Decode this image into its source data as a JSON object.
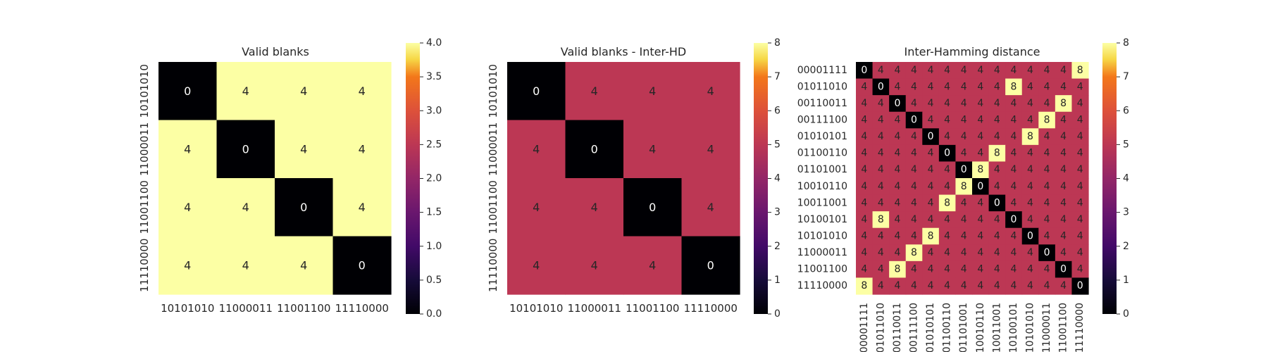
{
  "colormap": "inferno",
  "chart_data": [
    {
      "type": "heatmap",
      "title": "Valid blanks",
      "x_labels": [
        "10101010",
        "11000011",
        "11001100",
        "11110000"
      ],
      "y_labels": [
        "10101010",
        "11000011",
        "11001100",
        "11110000"
      ],
      "values": [
        [
          0,
          4,
          4,
          4
        ],
        [
          4,
          0,
          4,
          4
        ],
        [
          4,
          4,
          0,
          4
        ],
        [
          4,
          4,
          4,
          0
        ]
      ],
      "vmin": 0,
      "vmax": 4,
      "colorbar_ticks": [
        "0.0",
        "0.5",
        "1.0",
        "1.5",
        "2.0",
        "2.5",
        "3.0",
        "3.5",
        "4.0"
      ],
      "colorbar_tick_values": [
        0,
        0.5,
        1,
        1.5,
        2,
        2.5,
        3,
        3.5,
        4
      ],
      "annotate": true,
      "y_tick_rotation": "vertical",
      "x_tick_rotation": "horizontal"
    },
    {
      "type": "heatmap",
      "title": "Valid blanks - Inter-HD",
      "x_labels": [
        "10101010",
        "11000011",
        "11001100",
        "11110000"
      ],
      "y_labels": [
        "10101010",
        "11000011",
        "11001100",
        "11110000"
      ],
      "values": [
        [
          0,
          4,
          4,
          4
        ],
        [
          4,
          0,
          4,
          4
        ],
        [
          4,
          4,
          0,
          4
        ],
        [
          4,
          4,
          4,
          0
        ]
      ],
      "vmin": 0,
      "vmax": 8,
      "colorbar_ticks": [
        "0",
        "1",
        "2",
        "3",
        "4",
        "5",
        "6",
        "7",
        "8"
      ],
      "colorbar_tick_values": [
        0,
        1,
        2,
        3,
        4,
        5,
        6,
        7,
        8
      ],
      "annotate": true,
      "y_tick_rotation": "vertical",
      "x_tick_rotation": "horizontal"
    },
    {
      "type": "heatmap",
      "title": "Inter-Hamming distance",
      "x_labels": [
        "00001111",
        "01011010",
        "00110011",
        "00111100",
        "01010101",
        "01100110",
        "01101001",
        "10010110",
        "10011001",
        "10100101",
        "10101010",
        "11000011",
        "11001100",
        "11110000"
      ],
      "y_labels": [
        "00001111",
        "01011010",
        "00110011",
        "00111100",
        "01010101",
        "01100110",
        "01101001",
        "10010110",
        "10011001",
        "10100101",
        "10101010",
        "11000011",
        "11001100",
        "11110000"
      ],
      "values": [
        [
          0,
          4,
          4,
          4,
          4,
          4,
          4,
          4,
          4,
          4,
          4,
          4,
          4,
          8
        ],
        [
          4,
          0,
          4,
          4,
          4,
          4,
          4,
          4,
          4,
          8,
          4,
          4,
          4,
          4
        ],
        [
          4,
          4,
          0,
          4,
          4,
          4,
          4,
          4,
          4,
          4,
          4,
          4,
          8,
          4
        ],
        [
          4,
          4,
          4,
          0,
          4,
          4,
          4,
          4,
          4,
          4,
          4,
          8,
          4,
          4
        ],
        [
          4,
          4,
          4,
          4,
          0,
          4,
          4,
          4,
          4,
          4,
          8,
          4,
          4,
          4
        ],
        [
          4,
          4,
          4,
          4,
          4,
          0,
          4,
          4,
          8,
          4,
          4,
          4,
          4,
          4
        ],
        [
          4,
          4,
          4,
          4,
          4,
          4,
          0,
          8,
          4,
          4,
          4,
          4,
          4,
          4
        ],
        [
          4,
          4,
          4,
          4,
          4,
          4,
          8,
          0,
          4,
          4,
          4,
          4,
          4,
          4
        ],
        [
          4,
          4,
          4,
          4,
          4,
          8,
          4,
          4,
          0,
          4,
          4,
          4,
          4,
          4
        ],
        [
          4,
          8,
          4,
          4,
          4,
          4,
          4,
          4,
          4,
          0,
          4,
          4,
          4,
          4
        ],
        [
          4,
          4,
          4,
          4,
          8,
          4,
          4,
          4,
          4,
          4,
          0,
          4,
          4,
          4
        ],
        [
          4,
          4,
          4,
          8,
          4,
          4,
          4,
          4,
          4,
          4,
          4,
          0,
          4,
          4
        ],
        [
          4,
          4,
          8,
          4,
          4,
          4,
          4,
          4,
          4,
          4,
          4,
          4,
          0,
          4
        ],
        [
          8,
          4,
          4,
          4,
          4,
          4,
          4,
          4,
          4,
          4,
          4,
          4,
          4,
          0
        ]
      ],
      "vmin": 0,
      "vmax": 8,
      "colorbar_ticks": [
        "0",
        "1",
        "2",
        "3",
        "4",
        "5",
        "6",
        "7",
        "8"
      ],
      "colorbar_tick_values": [
        0,
        1,
        2,
        3,
        4,
        5,
        6,
        7,
        8
      ],
      "annotate": true,
      "y_tick_rotation": "horizontal",
      "x_tick_rotation": "vertical"
    }
  ]
}
